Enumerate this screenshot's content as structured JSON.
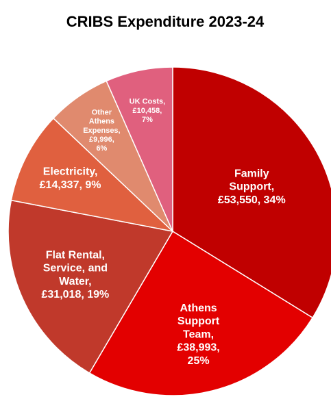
{
  "chart_data": {
    "type": "pie",
    "title": "CRIBS Expenditure 2023-24",
    "values": [
      53550,
      38993,
      31018,
      14337,
      9996,
      10458
    ],
    "value_labels": [
      "Family\nSupport,\n£53,550, 34%",
      "Athens\nSupport\nTeam,\n£38,993,\n25%",
      "Flat Rental,\nService, and\nWater,\n£31,018, 19%",
      "Electricity,\n£14,337, 9%",
      "Other\nAthens\nExpenses,\n£9,996,\n6%",
      "UK Costs,\n£10,458,\n7%"
    ],
    "colors": [
      "#c00000",
      "#e30000",
      "#c0392b",
      "#e0603f",
      "#e08a6e",
      "#e0607e"
    ]
  }
}
